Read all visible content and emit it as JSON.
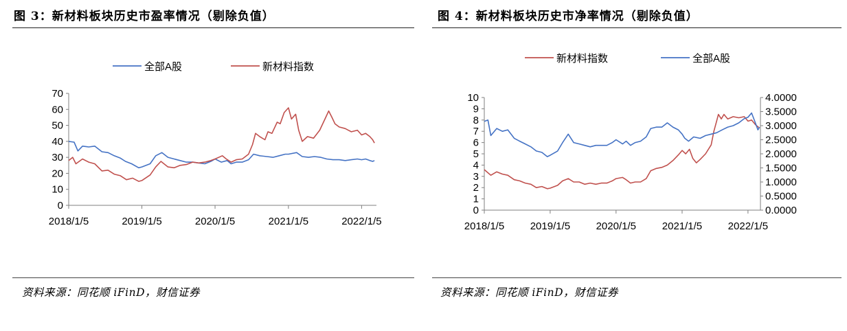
{
  "left": {
    "title": "图 3：新材料板块历史市盈率情况（剔除负值）",
    "source": "资料来源：同花顺 iFinD，财信证券"
  },
  "right": {
    "title": "图 4：新材料板块历史市净率情况（剔除负值）",
    "source": "资料来源：同花顺 iFinD，财信证券"
  },
  "chart_data": [
    {
      "type": "line",
      "legend_position": "top",
      "x_ticks": [
        "2018/1/5",
        "2019/1/5",
        "2020/1/5",
        "2021/1/5",
        "2022/1/5"
      ],
      "ylim": [
        0,
        70
      ],
      "y_ticks": [
        "0",
        "10",
        "20",
        "30",
        "40",
        "50",
        "60",
        "70"
      ],
      "grid": false,
      "series": [
        {
          "name": "全部A股",
          "color": "#4472c4",
          "points": [
            [
              "2018/1/5",
              40
            ],
            [
              "2018/2/1",
              39.5
            ],
            [
              "2018/2/20",
              34
            ],
            [
              "2018/3/15",
              37
            ],
            [
              "2018/4/15",
              36.5
            ],
            [
              "2018/5/15",
              37
            ],
            [
              "2018/6/20",
              33.5
            ],
            [
              "2018/7/20",
              33
            ],
            [
              "2018/8/20",
              31
            ],
            [
              "2018/9/20",
              29.5
            ],
            [
              "2018/10/15",
              27.5
            ],
            [
              "2018/11/15",
              26
            ],
            [
              "2018/12/20",
              23.5
            ],
            [
              "2019/1/5",
              24
            ],
            [
              "2019/2/15",
              26
            ],
            [
              "2019/3/15",
              31
            ],
            [
              "2019/4/15",
              33
            ],
            [
              "2019/5/15",
              30
            ],
            [
              "2019/6/15",
              29
            ],
            [
              "2019/7/15",
              28
            ],
            [
              "2019/8/15",
              27
            ],
            [
              "2019/9/15",
              27
            ],
            [
              "2019/10/15",
              26.5
            ],
            [
              "2019/11/15",
              26
            ],
            [
              "2019/12/15",
              27.5
            ],
            [
              "2020/1/5",
              29
            ],
            [
              "2020/2/5",
              27
            ],
            [
              "2020/3/5",
              28
            ],
            [
              "2020/3/25",
              26
            ],
            [
              "2020/4/20",
              27
            ],
            [
              "2020/5/20",
              27
            ],
            [
              "2020/6/20",
              28.5
            ],
            [
              "2020/7/15",
              32
            ],
            [
              "2020/8/15",
              31
            ],
            [
              "2020/9/20",
              30.5
            ],
            [
              "2020/10/20",
              30
            ],
            [
              "2020/11/20",
              31
            ],
            [
              "2020/12/20",
              32
            ],
            [
              "2021/1/5",
              32
            ],
            [
              "2021/2/15",
              33
            ],
            [
              "2021/3/15",
              30.5
            ],
            [
              "2021/4/15",
              30
            ],
            [
              "2021/5/15",
              30.5
            ],
            [
              "2021/6/15",
              30
            ],
            [
              "2021/7/15",
              29
            ],
            [
              "2021/8/15",
              28.5
            ],
            [
              "2021/9/15",
              28.5
            ],
            [
              "2021/10/15",
              28
            ],
            [
              "2021/11/15",
              28.5
            ],
            [
              "2021/12/15",
              29
            ],
            [
              "2022/1/5",
              28.5
            ],
            [
              "2022/1/25",
              29
            ],
            [
              "2022/2/15",
              28
            ],
            [
              "2022/3/1",
              27.5
            ],
            [
              "2022/3/10",
              28
            ]
          ]
        },
        {
          "name": "新材料指数",
          "color": "#c0504d",
          "points": [
            [
              "2018/1/5",
              28
            ],
            [
              "2018/1/25",
              30
            ],
            [
              "2018/2/10",
              26
            ],
            [
              "2018/3/15",
              29
            ],
            [
              "2018/4/15",
              27
            ],
            [
              "2018/5/15",
              26
            ],
            [
              "2018/6/20",
              21.5
            ],
            [
              "2018/7/20",
              22
            ],
            [
              "2018/8/20",
              19.5
            ],
            [
              "2018/9/20",
              18.5
            ],
            [
              "2018/10/20",
              16
            ],
            [
              "2018/11/20",
              17
            ],
            [
              "2018/12/20",
              15
            ],
            [
              "2019/1/5",
              15.5
            ],
            [
              "2019/2/15",
              19
            ],
            [
              "2019/3/15",
              24
            ],
            [
              "2019/4/10",
              27.5
            ],
            [
              "2019/5/15",
              24
            ],
            [
              "2019/6/15",
              23.5
            ],
            [
              "2019/7/15",
              25
            ],
            [
              "2019/8/15",
              25.5
            ],
            [
              "2019/9/15",
              27
            ],
            [
              "2019/10/15",
              26.5
            ],
            [
              "2019/11/15",
              27
            ],
            [
              "2019/12/15",
              28
            ],
            [
              "2020/1/5",
              29
            ],
            [
              "2020/2/10",
              31
            ],
            [
              "2020/3/1",
              29
            ],
            [
              "2020/3/25",
              27
            ],
            [
              "2020/4/20",
              28.5
            ],
            [
              "2020/5/20",
              29
            ],
            [
              "2020/6/20",
              32
            ],
            [
              "2020/7/10",
              38
            ],
            [
              "2020/7/25",
              45
            ],
            [
              "2020/8/15",
              43
            ],
            [
              "2020/9/10",
              41
            ],
            [
              "2020/9/25",
              46
            ],
            [
              "2020/10/15",
              45
            ],
            [
              "2020/11/10",
              52
            ],
            [
              "2020/11/25",
              51
            ],
            [
              "2020/12/15",
              58
            ],
            [
              "2021/1/5",
              61
            ],
            [
              "2021/1/20",
              54
            ],
            [
              "2021/2/10",
              57
            ],
            [
              "2021/2/25",
              47
            ],
            [
              "2021/3/15",
              40
            ],
            [
              "2021/4/10",
              43
            ],
            [
              "2021/5/10",
              42
            ],
            [
              "2021/6/10",
              47
            ],
            [
              "2021/7/10",
              55
            ],
            [
              "2021/7/25",
              59
            ],
            [
              "2021/8/10",
              55
            ],
            [
              "2021/8/25",
              51
            ],
            [
              "2021/9/15",
              49
            ],
            [
              "2021/10/15",
              48
            ],
            [
              "2021/11/15",
              46
            ],
            [
              "2021/12/15",
              47
            ],
            [
              "2022/1/5",
              44
            ],
            [
              "2022/1/25",
              45
            ],
            [
              "2022/2/15",
              43
            ],
            [
              "2022/3/1",
              41
            ],
            [
              "2022/3/10",
              39
            ]
          ]
        }
      ]
    },
    {
      "type": "line",
      "legend_position": "top",
      "x_ticks": [
        "2018/1/5",
        "2019/1/5",
        "2020/1/5",
        "2021/1/5",
        "2022/1/5"
      ],
      "ylim_left": [
        0,
        10
      ],
      "y_ticks_left": [
        "0",
        "1",
        "2",
        "3",
        "4",
        "5",
        "6",
        "7",
        "8",
        "9",
        "10"
      ],
      "ylim_right": [
        0,
        4
      ],
      "y_ticks_right": [
        "0.0000",
        "0.5000",
        "1.0000",
        "1.5000",
        "2.0000",
        "2.5000",
        "3.0000",
        "3.5000",
        "4.0000"
      ],
      "grid": false,
      "series": [
        {
          "name": "新材料指数",
          "axis": "left",
          "color": "#c0504d",
          "points": [
            [
              "2018/1/5",
              3.6
            ],
            [
              "2018/2/10",
              3.1
            ],
            [
              "2018/3/15",
              3.4
            ],
            [
              "2018/4/15",
              3.2
            ],
            [
              "2018/5/15",
              3.1
            ],
            [
              "2018/6/20",
              2.7
            ],
            [
              "2018/7/20",
              2.6
            ],
            [
              "2018/8/20",
              2.4
            ],
            [
              "2018/9/20",
              2.3
            ],
            [
              "2018/10/20",
              2.0
            ],
            [
              "2018/11/20",
              2.1
            ],
            [
              "2018/12/20",
              1.9
            ],
            [
              "2019/1/5",
              1.95
            ],
            [
              "2019/2/15",
              2.2
            ],
            [
              "2019/3/15",
              2.6
            ],
            [
              "2019/4/15",
              2.8
            ],
            [
              "2019/5/15",
              2.5
            ],
            [
              "2019/6/15",
              2.5
            ],
            [
              "2019/7/15",
              2.3
            ],
            [
              "2019/8/15",
              2.4
            ],
            [
              "2019/9/15",
              2.3
            ],
            [
              "2019/10/15",
              2.4
            ],
            [
              "2019/11/15",
              2.4
            ],
            [
              "2019/12/15",
              2.6
            ],
            [
              "2020/1/5",
              2.8
            ],
            [
              "2020/2/10",
              2.9
            ],
            [
              "2020/3/1",
              2.7
            ],
            [
              "2020/3/25",
              2.4
            ],
            [
              "2020/4/20",
              2.5
            ],
            [
              "2020/5/20",
              2.5
            ],
            [
              "2020/6/20",
              2.8
            ],
            [
              "2020/7/15",
              3.5
            ],
            [
              "2020/8/15",
              3.7
            ],
            [
              "2020/9/15",
              3.8
            ],
            [
              "2020/10/15",
              4.0
            ],
            [
              "2020/11/15",
              4.4
            ],
            [
              "2020/12/15",
              4.9
            ],
            [
              "2021/1/5",
              5.3
            ],
            [
              "2021/1/25",
              5.0
            ],
            [
              "2021/2/15",
              5.4
            ],
            [
              "2021/3/5",
              4.6
            ],
            [
              "2021/3/25",
              4.2
            ],
            [
              "2021/4/15",
              4.5
            ],
            [
              "2021/5/15",
              5.0
            ],
            [
              "2021/6/15",
              5.8
            ],
            [
              "2021/6/30",
              7.0
            ],
            [
              "2021/7/15",
              7.9
            ],
            [
              "2021/7/25",
              8.5
            ],
            [
              "2021/8/10",
              8.1
            ],
            [
              "2021/8/25",
              8.5
            ],
            [
              "2021/9/15",
              8.1
            ],
            [
              "2021/10/15",
              8.3
            ],
            [
              "2021/11/15",
              8.2
            ],
            [
              "2021/12/15",
              8.3
            ],
            [
              "2022/1/5",
              7.9
            ],
            [
              "2022/1/25",
              8.0
            ],
            [
              "2022/2/15",
              7.6
            ],
            [
              "2022/3/1",
              7.4
            ],
            [
              "2022/3/10",
              7.3
            ]
          ]
        },
        {
          "name": "全部A股",
          "axis": "right",
          "color": "#4472c4",
          "points": [
            [
              "2018/1/5",
              3.15
            ],
            [
              "2018/1/25",
              3.2
            ],
            [
              "2018/2/10",
              2.65
            ],
            [
              "2018/3/15",
              2.9
            ],
            [
              "2018/4/15",
              2.8
            ],
            [
              "2018/5/15",
              2.85
            ],
            [
              "2018/6/20",
              2.55
            ],
            [
              "2018/7/20",
              2.45
            ],
            [
              "2018/8/20",
              2.35
            ],
            [
              "2018/9/20",
              2.25
            ],
            [
              "2018/10/20",
              2.1
            ],
            [
              "2018/11/20",
              2.05
            ],
            [
              "2018/12/20",
              1.9
            ],
            [
              "2019/1/5",
              1.95
            ],
            [
              "2019/2/15",
              2.1
            ],
            [
              "2019/3/15",
              2.4
            ],
            [
              "2019/4/15",
              2.7
            ],
            [
              "2019/5/15",
              2.4
            ],
            [
              "2019/6/15",
              2.35
            ],
            [
              "2019/7/15",
              2.3
            ],
            [
              "2019/8/15",
              2.25
            ],
            [
              "2019/9/15",
              2.3
            ],
            [
              "2019/10/15",
              2.3
            ],
            [
              "2019/11/15",
              2.3
            ],
            [
              "2019/12/15",
              2.4
            ],
            [
              "2020/1/5",
              2.5
            ],
            [
              "2020/2/10",
              2.35
            ],
            [
              "2020/3/1",
              2.45
            ],
            [
              "2020/3/25",
              2.3
            ],
            [
              "2020/4/20",
              2.4
            ],
            [
              "2020/5/20",
              2.45
            ],
            [
              "2020/6/20",
              2.6
            ],
            [
              "2020/7/15",
              2.9
            ],
            [
              "2020/8/15",
              2.95
            ],
            [
              "2020/9/15",
              2.95
            ],
            [
              "2020/10/15",
              3.1
            ],
            [
              "2020/11/15",
              2.95
            ],
            [
              "2020/12/15",
              2.85
            ],
            [
              "2021/1/5",
              2.7
            ],
            [
              "2021/1/20",
              2.55
            ],
            [
              "2021/2/10",
              2.45
            ],
            [
              "2021/3/10",
              2.6
            ],
            [
              "2021/4/15",
              2.55
            ],
            [
              "2021/5/15",
              2.65
            ],
            [
              "2021/6/15",
              2.7
            ],
            [
              "2021/7/15",
              2.75
            ],
            [
              "2021/8/15",
              2.85
            ],
            [
              "2021/9/15",
              2.95
            ],
            [
              "2021/10/15",
              3.0
            ],
            [
              "2021/11/15",
              3.1
            ],
            [
              "2021/12/15",
              3.25
            ],
            [
              "2022/1/5",
              3.3
            ],
            [
              "2022/1/25",
              3.45
            ],
            [
              "2022/2/15",
              3.1
            ],
            [
              "2022/3/1",
              2.85
            ],
            [
              "2022/3/10",
              2.95
            ]
          ]
        }
      ]
    }
  ]
}
